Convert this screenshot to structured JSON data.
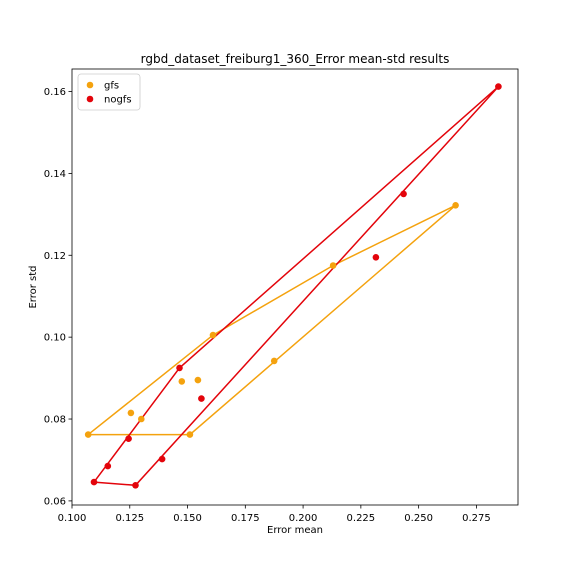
{
  "chart_data": {
    "type": "scatter",
    "title": "rgbd_dataset_freiburg1_360_Error mean-std results",
    "xlabel": "Error mean",
    "ylabel": "Error std",
    "xlim": [
      0.1,
      0.293
    ],
    "ylim": [
      0.059,
      0.1655
    ],
    "xticks": [
      "0.100",
      "0.125",
      "0.150",
      "0.175",
      "0.200",
      "0.225",
      "0.250",
      "0.275"
    ],
    "yticks": [
      "0.06",
      "0.08",
      "0.10",
      "0.12",
      "0.14",
      "0.16"
    ],
    "grid": false,
    "legend_position": "top-left",
    "series": [
      {
        "name": "gfs",
        "color": "#f4a20e",
        "points": [
          {
            "x": 0.107,
            "y": 0.0762
          },
          {
            "x": 0.1255,
            "y": 0.0815
          },
          {
            "x": 0.13,
            "y": 0.08
          },
          {
            "x": 0.1475,
            "y": 0.0892
          },
          {
            "x": 0.1545,
            "y": 0.0895
          },
          {
            "x": 0.151,
            "y": 0.0762
          },
          {
            "x": 0.161,
            "y": 0.1005
          },
          {
            "x": 0.1875,
            "y": 0.0942
          },
          {
            "x": 0.213,
            "y": 0.1175
          },
          {
            "x": 0.266,
            "y": 0.1322
          }
        ],
        "hull": [
          {
            "x": 0.107,
            "y": 0.0762
          },
          {
            "x": 0.151,
            "y": 0.0762
          },
          {
            "x": 0.266,
            "y": 0.1322
          },
          {
            "x": 0.213,
            "y": 0.1175
          },
          {
            "x": 0.161,
            "y": 0.1005
          },
          {
            "x": 0.107,
            "y": 0.0762
          }
        ]
      },
      {
        "name": "nogfs",
        "color": "#e3040b",
        "points": [
          {
            "x": 0.1095,
            "y": 0.0646
          },
          {
            "x": 0.1155,
            "y": 0.0685
          },
          {
            "x": 0.1245,
            "y": 0.0752
          },
          {
            "x": 0.1275,
            "y": 0.0638
          },
          {
            "x": 0.139,
            "y": 0.0702
          },
          {
            "x": 0.1465,
            "y": 0.0925
          },
          {
            "x": 0.156,
            "y": 0.085
          },
          {
            "x": 0.2315,
            "y": 0.1195
          },
          {
            "x": 0.2435,
            "y": 0.135
          },
          {
            "x": 0.2845,
            "y": 0.1612
          }
        ],
        "hull": [
          {
            "x": 0.1095,
            "y": 0.0646
          },
          {
            "x": 0.1275,
            "y": 0.0638
          },
          {
            "x": 0.2845,
            "y": 0.1612
          },
          {
            "x": 0.1465,
            "y": 0.0925
          },
          {
            "x": 0.1095,
            "y": 0.0646
          }
        ]
      }
    ]
  }
}
